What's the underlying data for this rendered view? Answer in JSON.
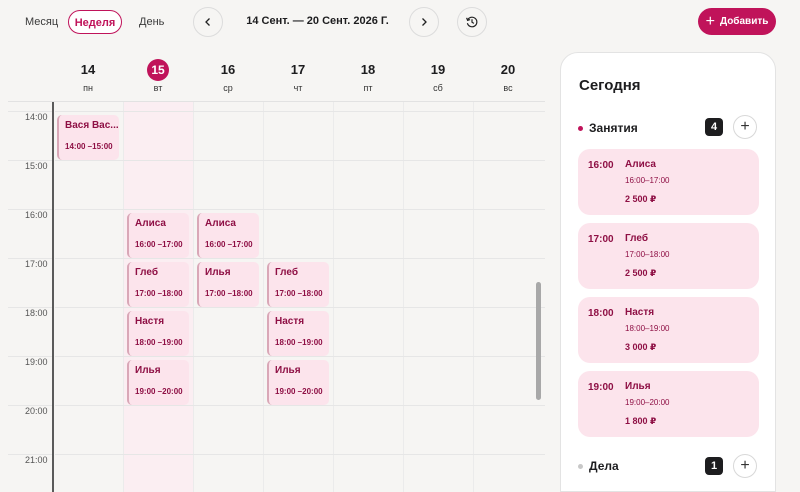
{
  "toolbar": {
    "view_month": "Месяц",
    "view_week": "Неделя",
    "view_day": "День",
    "range": "14 Сент. — 20 Сент. 2026 Г.",
    "add_label": "Добавить"
  },
  "days": [
    {
      "num": "14",
      "name": "пн"
    },
    {
      "num": "15",
      "name": "вт"
    },
    {
      "num": "16",
      "name": "ср"
    },
    {
      "num": "17",
      "name": "чт"
    },
    {
      "num": "18",
      "name": "пт"
    },
    {
      "num": "19",
      "name": "сб"
    },
    {
      "num": "20",
      "name": "вс"
    }
  ],
  "hours": [
    "14:00",
    "15:00",
    "16:00",
    "17:00",
    "18:00",
    "19:00",
    "20:00",
    "21:00"
  ],
  "events": [
    {
      "name": "Вася Вас...",
      "time": "14:00 –15:00"
    },
    {
      "name": "Алиса",
      "time": "16:00 –17:00"
    },
    {
      "name": "Алиса",
      "time": "16:00 –17:00"
    },
    {
      "name": "Глеб",
      "time": "17:00 –18:00"
    },
    {
      "name": "Илья",
      "time": "17:00 –18:00"
    },
    {
      "name": "Глеб",
      "time": "17:00 –18:00"
    },
    {
      "name": "Настя",
      "time": "18:00 –19:00"
    },
    {
      "name": "Настя",
      "time": "18:00 –19:00"
    },
    {
      "name": "Илья",
      "time": "19:00 –20:00"
    },
    {
      "name": "Илья",
      "time": "19:00 –20:00"
    }
  ],
  "today_panel": {
    "title": "Сегодня",
    "lessons_label": "Занятия",
    "lessons_count": "4",
    "cards": [
      {
        "start": "16:00",
        "name": "Алиса",
        "range": "16:00–17:00",
        "price": "2 500 ₽"
      },
      {
        "start": "17:00",
        "name": "Глеб",
        "range": "17:00–18:00",
        "price": "2 500 ₽"
      },
      {
        "start": "18:00",
        "name": "Настя",
        "range": "18:00–19:00",
        "price": "3 000 ₽"
      },
      {
        "start": "19:00",
        "name": "Илья",
        "range": "19:00–20:00",
        "price": "1 800 ₽"
      }
    ],
    "tasks_label": "Дела",
    "tasks_count": "1"
  },
  "colors": {
    "accent": "#c0135a",
    "event_bg": "#fce4ec",
    "event_text": "#8e0f44",
    "today_column": "#fbeef2"
  },
  "icons": {
    "prev": "chevron-left-icon",
    "next": "chevron-right-icon",
    "history": "history-icon",
    "add": "plus-icon"
  }
}
